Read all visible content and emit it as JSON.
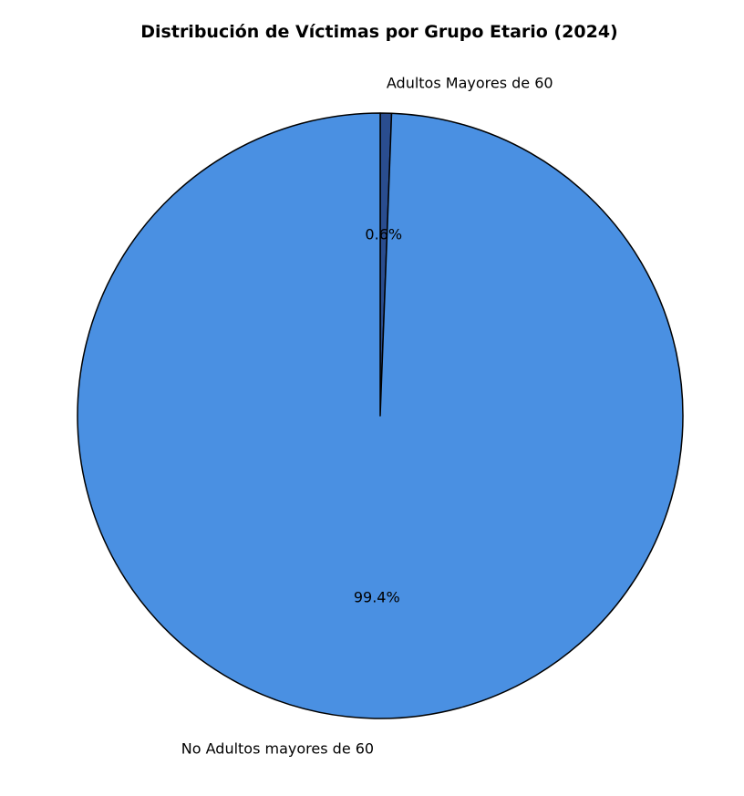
{
  "chart_data": {
    "type": "pie",
    "title": "Distribución de Víctimas por Grupo Etario (2024)",
    "start_angle_deg": 90,
    "direction": "clockwise",
    "slices": [
      {
        "label": "Adultos Mayores de 60",
        "value": 0.6,
        "pct_label": "0.6%",
        "color": "#2a4d8f"
      },
      {
        "label": "No Adultos mayores de 60",
        "value": 99.4,
        "pct_label": "99.4%",
        "color": "#4a90e2"
      }
    ],
    "edge_color": "#000000"
  }
}
